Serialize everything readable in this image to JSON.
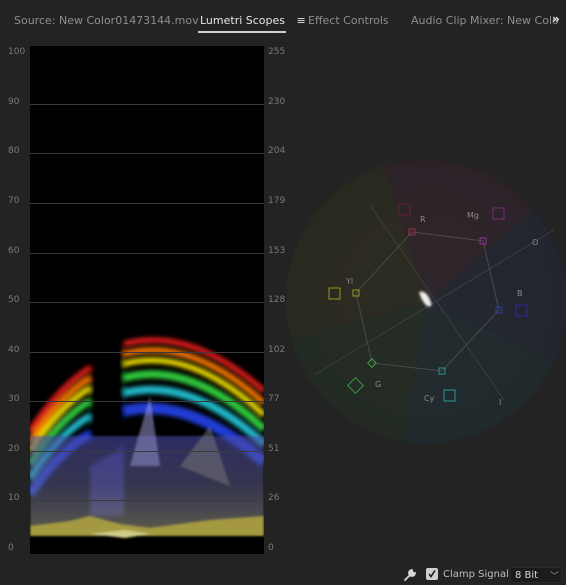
{
  "tabs": {
    "source": "Source: New Color01473144.mov",
    "lumetri": "Lumetri Scopes",
    "lumetri_menu": "≡",
    "effect_controls": "Effect Controls",
    "audio_mixer": "Audio Clip Mixer: New Colo",
    "overflow": "»"
  },
  "waveform": {
    "left_ticks": [
      "100",
      "90",
      "80",
      "70",
      "60",
      "50",
      "40",
      "30",
      "20",
      "10",
      "0"
    ],
    "right_ticks": [
      "255",
      "230",
      "204",
      "179",
      "153",
      "128",
      "102",
      "77",
      "51",
      "26",
      "0"
    ]
  },
  "vectorscope": {
    "labels": {
      "r": "R",
      "mg": "Mg",
      "b": "B",
      "cy": "Cy",
      "g": "G",
      "yl": "Yl",
      "o": "O",
      "i": "I"
    }
  },
  "bottom": {
    "clamp_label": "Clamp Signal",
    "bit_depth": "8 Bit",
    "clamp_checked": true
  },
  "colors": {
    "accent_border": "#2f5f86",
    "panel_bg": "#232323"
  }
}
